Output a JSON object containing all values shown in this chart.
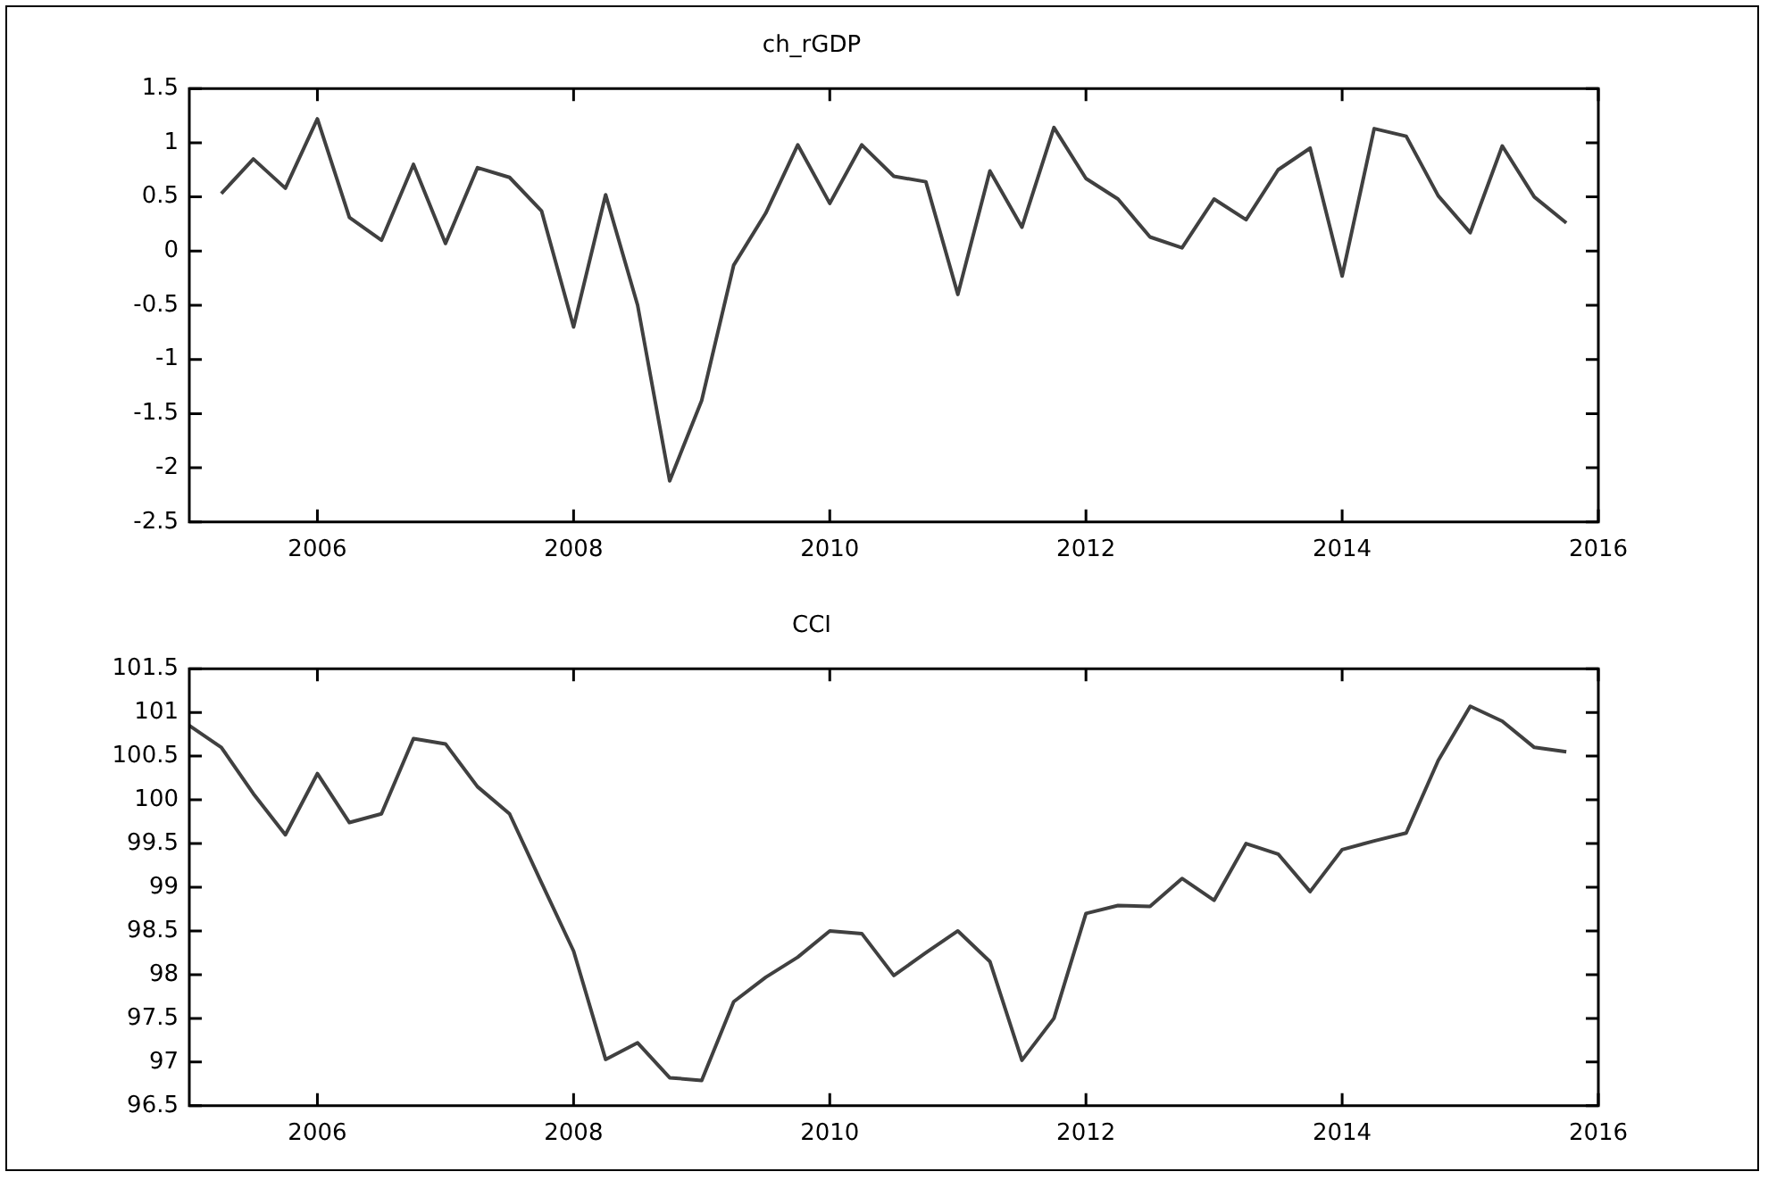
{
  "chart_data": [
    {
      "type": "line",
      "title": "ch_rGDP",
      "x": [
        2005.25,
        2005.5,
        2005.75,
        2006,
        2006.25,
        2006.5,
        2006.75,
        2007,
        2007.25,
        2007.5,
        2007.75,
        2008,
        2008.25,
        2008.5,
        2008.75,
        2009,
        2009.25,
        2009.5,
        2009.75,
        2010,
        2010.25,
        2010.5,
        2010.75,
        2011,
        2011.25,
        2011.5,
        2011.75,
        2012,
        2012.25,
        2012.5,
        2012.75,
        2013,
        2013.25,
        2013.5,
        2013.75,
        2014,
        2014.25,
        2014.5,
        2014.75,
        2015,
        2015.25,
        2015.5,
        2015.75
      ],
      "series": [
        {
          "color": "#404040",
          "values": [
            0.53,
            0.85,
            0.58,
            1.22,
            0.31,
            0.1,
            0.8,
            0.07,
            0.77,
            0.68,
            0.37,
            -0.7,
            0.52,
            -0.5,
            -2.12,
            -1.38,
            -0.13,
            0.35,
            0.98,
            0.44,
            0.98,
            0.69,
            0.64,
            -0.4,
            0.74,
            0.22,
            1.14,
            0.67,
            0.48,
            0.13,
            0.03,
            0.48,
            0.29,
            0.75,
            0.95,
            -0.23,
            1.13,
            1.06,
            0.51,
            0.17,
            0.97,
            0.5,
            0.26
          ]
        }
      ],
      "xlim": [
        2005,
        2016
      ],
      "xticks": [
        2006,
        2008,
        2010,
        2012,
        2014,
        2016
      ],
      "ylim": [
        -2.5,
        1.5
      ],
      "yticks": [
        -2.5,
        -2,
        -1.5,
        -1,
        -0.5,
        0,
        0.5,
        1,
        1.5
      ],
      "legend": false
    },
    {
      "type": "line",
      "title": "CCI",
      "x": [
        2005,
        2005.25,
        2005.5,
        2005.75,
        2006,
        2006.25,
        2006.5,
        2006.75,
        2007,
        2007.25,
        2007.5,
        2007.75,
        2008,
        2008.25,
        2008.5,
        2008.75,
        2009,
        2009.25,
        2009.5,
        2009.75,
        2010,
        2010.25,
        2010.5,
        2010.75,
        2011,
        2011.25,
        2011.5,
        2011.75,
        2012,
        2012.25,
        2012.5,
        2012.75,
        2013,
        2013.25,
        2013.5,
        2013.75,
        2014,
        2014.25,
        2014.5,
        2014.75,
        2015,
        2015.25,
        2015.5,
        2015.75
      ],
      "series": [
        {
          "color": "#404040",
          "values": [
            100.85,
            100.6,
            100.07,
            99.6,
            100.3,
            99.74,
            99.84,
            100.7,
            100.64,
            100.15,
            99.84,
            99.05,
            98.27,
            97.03,
            97.22,
            96.82,
            96.79,
            97.69,
            97.97,
            98.2,
            98.5,
            98.47,
            97.99,
            98.25,
            98.5,
            98.15,
            97.02,
            97.5,
            98.7,
            98.79,
            98.78,
            99.1,
            98.85,
            99.5,
            99.38,
            98.95,
            99.43,
            99.53,
            99.62,
            100.45,
            101.07,
            100.9,
            100.6,
            100.55
          ]
        }
      ],
      "xlim": [
        2005,
        2016
      ],
      "xticks": [
        2006,
        2008,
        2010,
        2012,
        2014,
        2016
      ],
      "ylim": [
        96.5,
        101.5
      ],
      "yticks": [
        96.5,
        97,
        97.5,
        98,
        98.5,
        99,
        99.5,
        100,
        100.5,
        101,
        101.5
      ],
      "legend": false
    }
  ]
}
